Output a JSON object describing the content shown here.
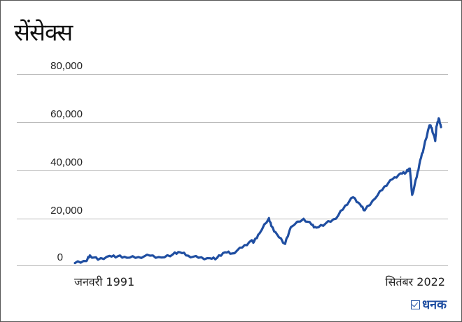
{
  "title": "सेंसेक्स",
  "brand": {
    "name": "धनक",
    "color": "#1f4ea1"
  },
  "axis": {
    "y_ticks": [
      "80,000",
      "60,000",
      "40,000",
      "20,000",
      "0"
    ],
    "x_start": "जनवरी 1991",
    "x_end": "सितंबर 2022"
  },
  "chart_data": {
    "type": "line",
    "title": "सेंसेक्स",
    "xlabel": "",
    "ylabel": "",
    "ylim": [
      0,
      80000
    ],
    "grid": true,
    "legend": "none",
    "line_color": "#1f4ea1",
    "x_tick_labels": [
      "जनवरी 1991",
      "सितंबर 2022"
    ],
    "y_tick_labels": [
      "0",
      "20,000",
      "40,000",
      "60,000",
      "80,000"
    ],
    "x": [
      1991.0,
      1992.0,
      1992.3,
      1993.0,
      1994.0,
      1994.7,
      1995.5,
      1996.5,
      1997.5,
      1998.5,
      1999.5,
      2000.1,
      2000.8,
      2001.7,
      2002.7,
      2003.3,
      2004.0,
      2004.6,
      2005.5,
      2006.3,
      2006.5,
      2007.0,
      2007.8,
      2008.0,
      2008.5,
      2009.2,
      2009.7,
      2010.8,
      2011.5,
      2011.9,
      2012.7,
      2013.6,
      2014.4,
      2015.1,
      2015.7,
      2016.1,
      2017.0,
      2017.8,
      2018.5,
      2019.2,
      2019.7,
      2020.0,
      2020.2,
      2020.6,
      2020.9,
      2021.2,
      2021.7,
      2021.9,
      2022.2,
      2022.3,
      2022.5,
      2022.7
    ],
    "values": [
      1000,
      1800,
      4200,
      2400,
      4000,
      3800,
      3200,
      3500,
      4100,
      3300,
      4700,
      5500,
      4100,
      3200,
      3000,
      3100,
      5500,
      5000,
      7500,
      10500,
      9800,
      13500,
      19800,
      16500,
      13000,
      9000,
      16000,
      19500,
      17000,
      15800,
      17500,
      19500,
      25000,
      28500,
      25500,
      23000,
      28000,
      33000,
      36000,
      38500,
      39000,
      40500,
      29500,
      37000,
      44000,
      49000,
      58500,
      57500,
      52000,
      58000,
      61500,
      57800
    ]
  }
}
